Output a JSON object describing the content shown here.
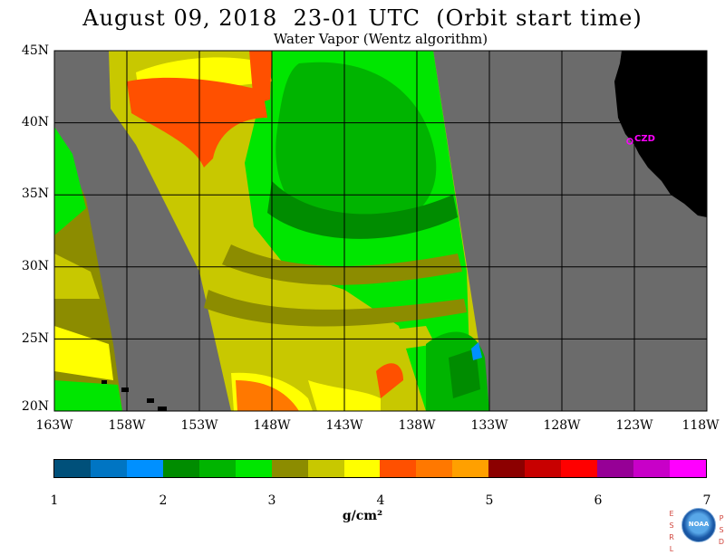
{
  "title": "August 09, 2018  23-01 UTC  (Orbit start time)",
  "subtitle": "Water Vapor (Wentz algorithm)",
  "lat_labels": [
    "45N",
    "40N",
    "35N",
    "30N",
    "25N",
    "20N"
  ],
  "lon_labels": [
    "163W",
    "158W",
    "153W",
    "148W",
    "143W",
    "138W",
    "133W",
    "128W",
    "123W",
    "118W"
  ],
  "map": {
    "lat_range": [
      20,
      45
    ],
    "lon_range": [
      -163,
      -118
    ],
    "grid": true,
    "station_label": "CZD",
    "colors": {
      "no_data": "#6b6b6b",
      "land": "#000000",
      "station": "#ff00ff"
    }
  },
  "colorbar": {
    "ticks": [
      "1",
      "2",
      "3",
      "4",
      "5",
      "6",
      "7"
    ],
    "unit": "g/cm²",
    "colors": [
      "#00507a",
      "#0075c3",
      "#0090ff",
      "#008c00",
      "#00b400",
      "#00e600",
      "#8c8c00",
      "#c8c800",
      "#ffff00",
      "#ff5000",
      "#ff7800",
      "#ffa000",
      "#8c0000",
      "#c80000",
      "#ff0000",
      "#960096",
      "#c800c8",
      "#ff00ff"
    ]
  },
  "logo": {
    "text": "NOAA",
    "left_letters": [
      "E",
      "S",
      "R",
      "L"
    ],
    "right_letters": [
      "P",
      "S",
      "D"
    ]
  }
}
